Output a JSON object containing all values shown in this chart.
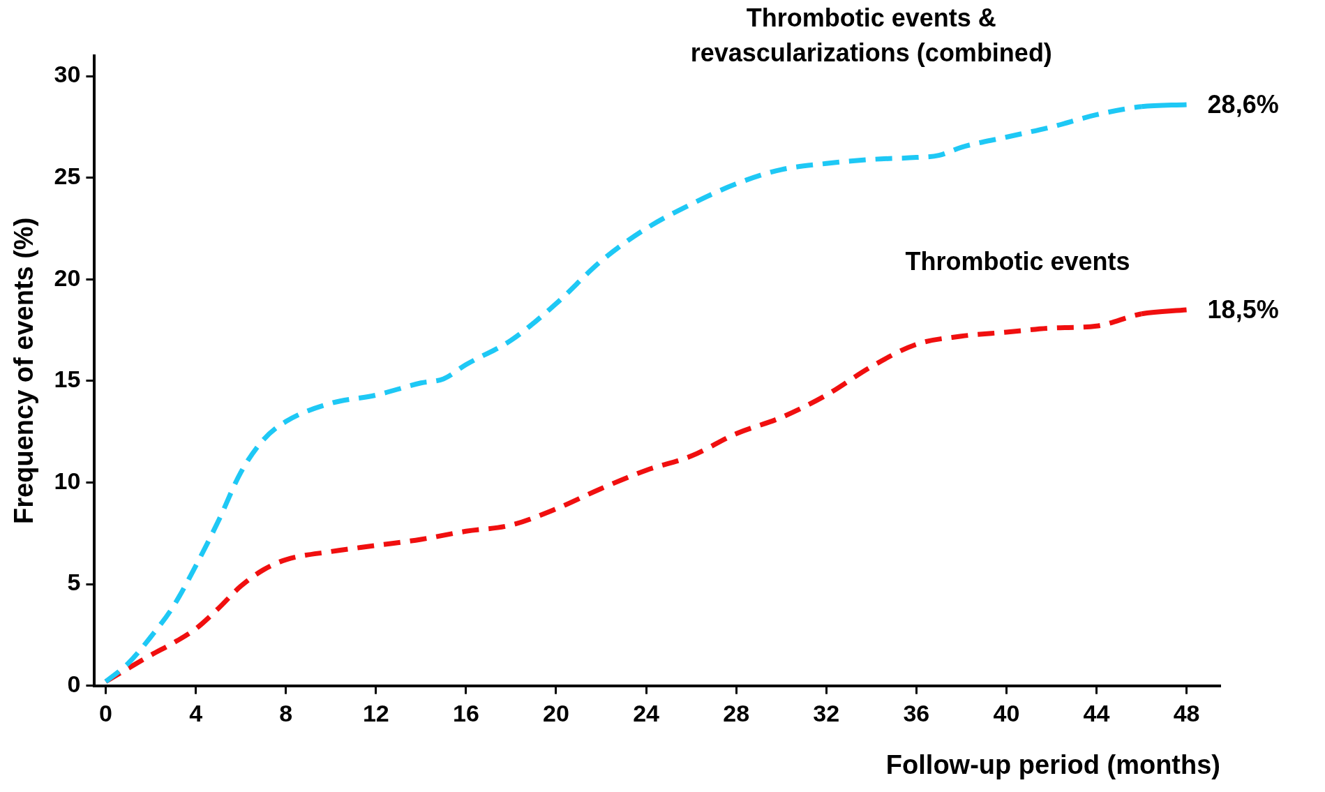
{
  "chart_data": {
    "type": "line",
    "xlabel": "Follow-up period (months)",
    "ylabel": "Frequency of events (%)",
    "xlim": [
      -0.5,
      49.5
    ],
    "xticks": [
      0,
      4,
      8,
      12,
      16,
      20,
      24,
      28,
      32,
      36,
      40,
      44,
      48
    ],
    "ylim": [
      0,
      31
    ],
    "yticks": [
      0,
      5,
      10,
      15,
      20,
      25,
      30
    ],
    "grid": false,
    "legend": false,
    "line_style": "dashed",
    "series": [
      {
        "name": "Thrombotic events & revascularizations (combined)",
        "color": "#1ec8f5",
        "x": [
          0,
          1,
          2,
          3,
          4,
          5,
          6,
          7,
          8,
          10,
          12,
          14,
          15,
          16,
          18,
          20,
          22,
          24,
          26,
          28,
          30,
          32,
          34,
          36,
          37,
          38,
          40,
          42,
          44,
          46,
          48
        ],
        "values": [
          0.2,
          1.1,
          2.4,
          3.9,
          5.9,
          8.1,
          10.5,
          12.1,
          13.0,
          13.9,
          14.3,
          14.9,
          15.1,
          15.8,
          17.0,
          18.8,
          20.9,
          22.5,
          23.7,
          24.7,
          25.4,
          25.7,
          25.9,
          26.0,
          26.1,
          26.5,
          27.0,
          27.5,
          28.1,
          28.5,
          28.6
        ],
        "value_labels": [
          null,
          null,
          null,
          null,
          null,
          null,
          null,
          null,
          null,
          null,
          null,
          null,
          null,
          null,
          null,
          null,
          null,
          null,
          null,
          null,
          null,
          null,
          null,
          null,
          null,
          null,
          null,
          null,
          null,
          null,
          "28,6%"
        ]
      },
      {
        "name": "Thrombotic events",
        "color": "#f00f0f",
        "x": [
          0,
          2,
          3,
          4,
          5,
          6,
          7,
          8,
          10,
          12,
          14,
          16,
          18,
          20,
          22,
          24,
          26,
          28,
          30,
          32,
          34,
          36,
          38,
          40,
          42,
          44,
          46,
          48
        ],
        "values": [
          0.2,
          1.5,
          2.1,
          2.8,
          3.8,
          4.9,
          5.7,
          6.2,
          6.6,
          6.9,
          7.2,
          7.6,
          7.9,
          8.7,
          9.7,
          10.6,
          11.3,
          12.4,
          13.2,
          14.3,
          15.7,
          16.8,
          17.2,
          17.4,
          17.6,
          17.7,
          18.3,
          18.5
        ],
        "value_labels": [
          null,
          null,
          null,
          null,
          null,
          null,
          null,
          null,
          null,
          null,
          null,
          null,
          null,
          null,
          null,
          null,
          null,
          null,
          null,
          null,
          null,
          null,
          null,
          null,
          null,
          null,
          null,
          "18,5%"
        ]
      }
    ]
  }
}
